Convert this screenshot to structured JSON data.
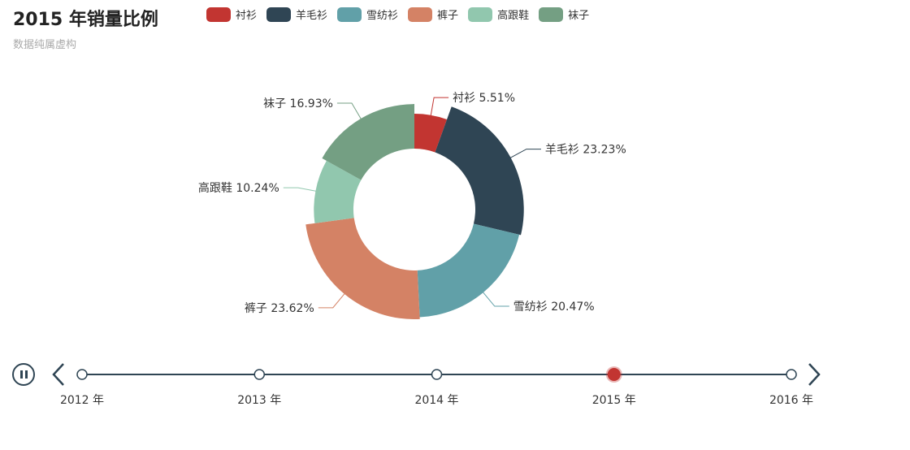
{
  "chart_data": {
    "type": "pie",
    "variant": "donut-rose",
    "title": "2015 年销量比例",
    "subtitle": "数据纯属虚构",
    "legend_placement": "top",
    "slices": [
      {
        "name": "衬衫",
        "percent": 5.51,
        "color": "#c23531",
        "label": "衬衫 5.51%"
      },
      {
        "name": "羊毛衫",
        "percent": 23.23,
        "color": "#2f4554",
        "label": "羊毛衫 23.23%"
      },
      {
        "name": "雪纺衫",
        "percent": 20.47,
        "color": "#61a0a8",
        "label": "雪纺衫 20.47%"
      },
      {
        "name": "裤子",
        "percent": 23.62,
        "color": "#d48265",
        "label": "裤子 23.62%"
      },
      {
        "name": "高跟鞋",
        "percent": 10.24,
        "color": "#91c7ae",
        "label": "高跟鞋 10.24%"
      },
      {
        "name": "袜子",
        "percent": 16.93,
        "color": "#749f83",
        "label": "袜子 16.93%"
      }
    ]
  },
  "timeline": {
    "points": [
      "2012 年",
      "2013 年",
      "2014 年",
      "2015 年",
      "2016 年"
    ],
    "current_index": 3,
    "line_color": "#2f4554",
    "active_color": "#c23531"
  }
}
